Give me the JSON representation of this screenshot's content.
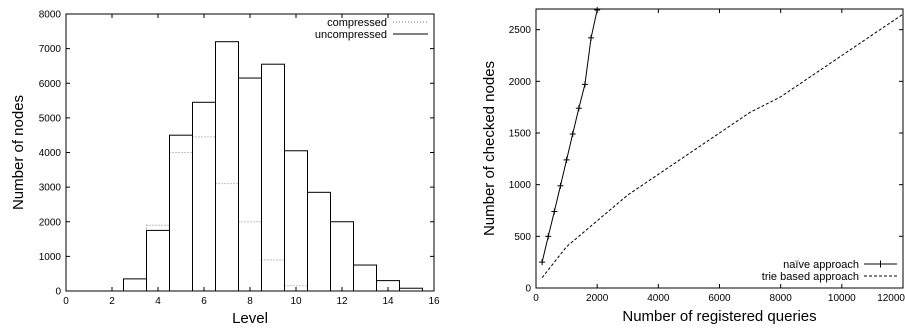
{
  "chart_data": [
    {
      "type": "bar",
      "xlabel": "Level",
      "ylabel": "Number of nodes",
      "xlim": [
        0,
        16
      ],
      "ylim": [
        0,
        8000
      ],
      "xticks": [
        0,
        2,
        4,
        6,
        8,
        10,
        12,
        14,
        16
      ],
      "yticks": [
        0,
        1000,
        2000,
        3000,
        4000,
        5000,
        6000,
        7000,
        8000
      ],
      "legend_position": "top-right",
      "categories": [
        3,
        4,
        5,
        6,
        7,
        8,
        9,
        10,
        11,
        12,
        13,
        14,
        15
      ],
      "series": [
        {
          "name": "compressed",
          "style": "dotted",
          "values": [
            0,
            1900,
            4000,
            4450,
            3100,
            2000,
            900,
            150,
            0,
            0,
            0,
            0,
            0
          ]
        },
        {
          "name": "uncompressed",
          "style": "solid",
          "values": [
            350,
            1750,
            4500,
            5450,
            7200,
            6150,
            6550,
            4050,
            2850,
            2000,
            750,
            300,
            80
          ]
        }
      ]
    },
    {
      "type": "line",
      "xlabel": "Number of registered queries",
      "ylabel": "Number of checked nodes",
      "xlim": [
        0,
        12000
      ],
      "ylim": [
        0,
        2700
      ],
      "xticks": [
        0,
        2000,
        4000,
        6000,
        8000,
        10000,
        12000
      ],
      "yticks": [
        0,
        500,
        1000,
        1500,
        2000,
        2500
      ],
      "legend_position": "bottom-right",
      "series": [
        {
          "name": "naïve approach",
          "style": "solid-with-plus",
          "x": [
            200,
            400,
            600,
            800,
            1000,
            1200,
            1400,
            1600,
            1800,
            2000
          ],
          "y": [
            250,
            500,
            740,
            990,
            1240,
            1490,
            1740,
            1970,
            2420,
            2690
          ]
        },
        {
          "name": "trie based approach",
          "style": "dashed",
          "x": [
            200,
            1000,
            2000,
            3000,
            4000,
            5000,
            6000,
            7000,
            8000,
            9000,
            10000,
            11000,
            12000
          ],
          "y": [
            100,
            400,
            650,
            900,
            1100,
            1300,
            1500,
            1700,
            1850,
            2050,
            2250,
            2450,
            2650
          ]
        }
      ]
    }
  ]
}
